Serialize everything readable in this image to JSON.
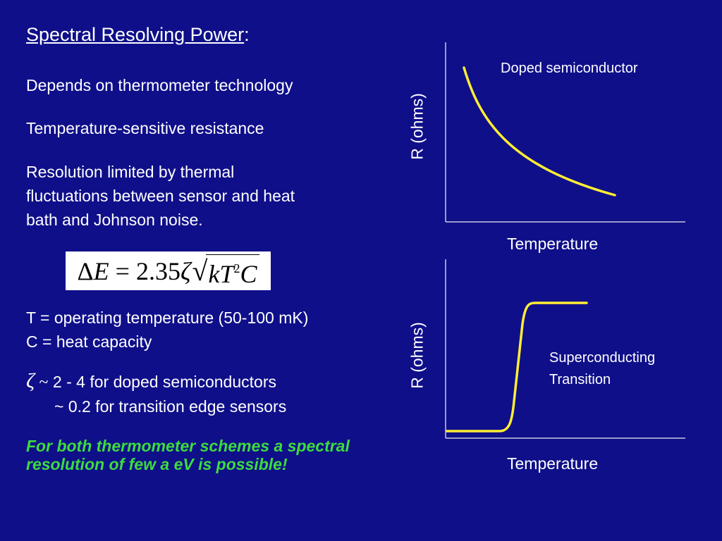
{
  "slide": {
    "title": "Spectral Resolving Power",
    "title_colon": ":",
    "bullets": [
      "Depends on thermometer technology",
      "Temperature-sensitive resistance"
    ],
    "resolution_lines": [
      "Resolution limited by thermal",
      "fluctuations between sensor and heat",
      "bath and Johnson noise."
    ],
    "formula": {
      "delta": "Δ",
      "E": "E",
      "equals": " = ",
      "coef": "2.35",
      "zeta": "ζ",
      "k": "k",
      "T": "T",
      "exp": "2",
      "C": "C"
    },
    "definitions": [
      "T = operating temperature (50-100 mK)",
      "C = heat capacity"
    ],
    "zeta_symbol": "ζ",
    "tilde": "~",
    "zeta_line1": "2 - 4 for doped semiconductors",
    "zeta_line2": "~ 0.2 for transition edge sensors",
    "conclusion_lines": [
      "For both thermometer schemes a spectral",
      "resolution of few a eV is possible!"
    ]
  },
  "plots": [
    {
      "ylabel": "R (ohms)",
      "xlabel": "Temperature",
      "curve_label": "Doped semiconductor",
      "curve_shape": "decreasing exponential"
    },
    {
      "ylabel": "R (ohms)",
      "xlabel": "Temperature",
      "curve_label_lines": [
        "Superconducting",
        "Transition"
      ],
      "curve_shape": "step (sharp rise at transition)"
    }
  ],
  "colors": {
    "background": "#0f0f8a",
    "text": "#ffffff",
    "curve": "#ffee33",
    "conclusion": "#3ddc3d"
  }
}
